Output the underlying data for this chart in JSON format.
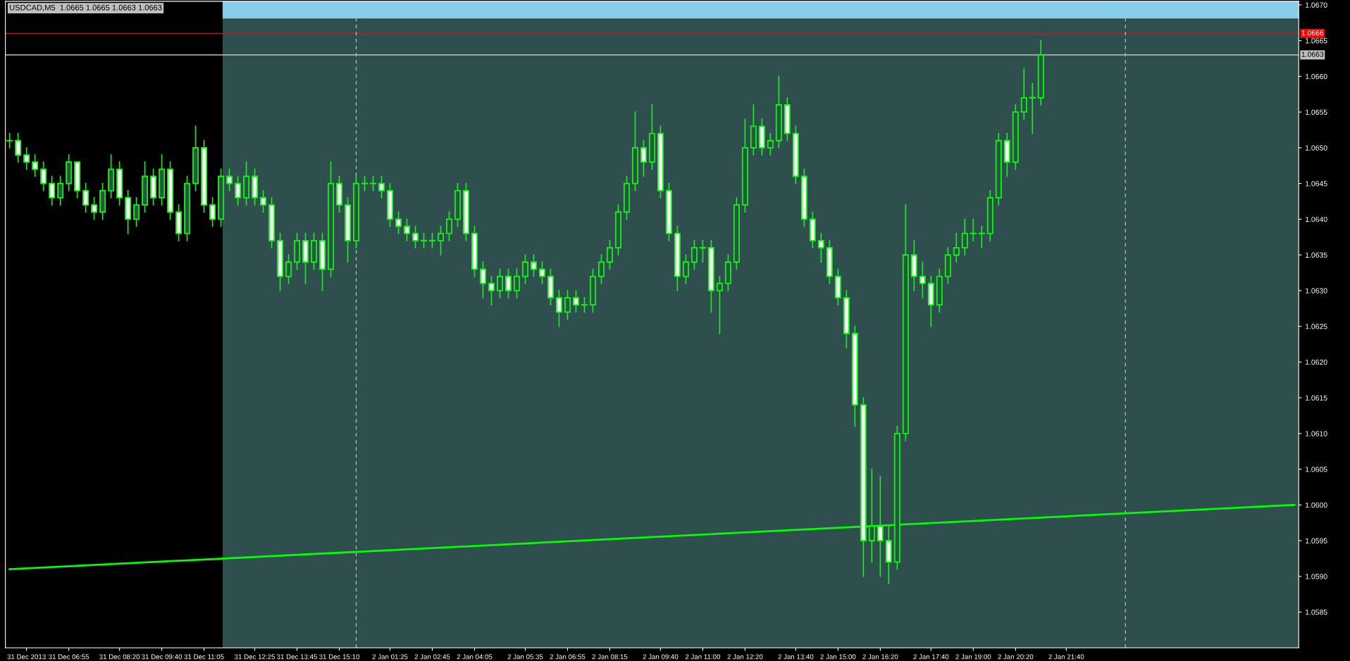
{
  "chart_data": {
    "type": "candlestick",
    "title": "USDCAD,M5  1.0665 1.0665 1.0663 1.0663",
    "color": "#00ff00",
    "categories": [
      null,
      null,
      "31 Dec 2013",
      null,
      null,
      null,
      null,
      "31 Dec 06:55",
      null,
      null,
      null,
      null,
      null,
      "31 Dec 08:20",
      null,
      null,
      null,
      null,
      "31 Dec 09:40",
      null,
      null,
      null,
      null,
      "31 Dec 11:05",
      null,
      null,
      null,
      null,
      null,
      "31 Dec 12:25",
      null,
      null,
      null,
      null,
      "31 Dec 13:45",
      null,
      null,
      null,
      null,
      "31 Dec 15:10",
      null,
      null,
      null,
      null,
      null,
      "2 Jan 01:25",
      null,
      null,
      null,
      null,
      "2 Jan 02:45",
      null,
      null,
      null,
      null,
      "2 Jan 04:05",
      null,
      null,
      null,
      null,
      null,
      "2 Jan 05:35",
      null,
      null,
      null,
      null,
      "2 Jan 06:55",
      null,
      null,
      null,
      null,
      "2 Jan 08:15",
      null,
      null,
      null,
      null,
      null,
      "2 Jan 09:40",
      null,
      null,
      null,
      null,
      "2 Jan 11:00",
      null,
      null,
      null,
      null,
      "2 Jan 12:20",
      null,
      null,
      null,
      null,
      null,
      "2 Jan 13:40",
      null,
      null,
      null,
      null,
      "2 Jan 15:00",
      null,
      null,
      null,
      null,
      "2 Jan 16:20",
      null,
      null,
      null,
      null,
      null,
      "2 Jan 17:40",
      null,
      null,
      null,
      null,
      "2 Jan 19:00",
      null,
      null,
      null,
      null,
      "2 Jan 20:20",
      null,
      null,
      null,
      null,
      null,
      "2 Jan 21:40",
      null,
      null,
      null,
      null,
      null,
      null,
      null,
      null,
      null,
      null,
      null,
      null,
      null,
      null,
      null,
      null,
      null,
      null,
      null,
      null,
      null,
      null,
      null,
      null,
      null,
      null,
      null
    ],
    "ohlc": [
      [
        1.0651,
        1.0652,
        1.065,
        1.0651
      ],
      [
        1.0651,
        1.0652,
        1.0648,
        1.0649
      ],
      [
        1.0649,
        1.065,
        1.0647,
        1.0648
      ],
      [
        1.0648,
        1.0649,
        1.0646,
        1.0647
      ],
      [
        1.0647,
        1.0648,
        1.0644,
        1.0645
      ],
      [
        1.0645,
        1.0646,
        1.0642,
        1.0643
      ],
      [
        1.0643,
        1.0646,
        1.0642,
        1.0645
      ],
      [
        1.0645,
        1.0649,
        1.0644,
        1.0648
      ],
      [
        1.0648,
        1.0648,
        1.0643,
        1.0644
      ],
      [
        1.0644,
        1.0645,
        1.0641,
        1.0642
      ],
      [
        1.0642,
        1.0643,
        1.064,
        1.0641
      ],
      [
        1.0641,
        1.0645,
        1.064,
        1.0644
      ],
      [
        1.0644,
        1.0649,
        1.0643,
        1.0647
      ],
      [
        1.0647,
        1.0648,
        1.0642,
        1.0643
      ],
      [
        1.0643,
        1.0644,
        1.0638,
        1.064
      ],
      [
        1.064,
        1.0643,
        1.0639,
        1.0642
      ],
      [
        1.0642,
        1.0648,
        1.0641,
        1.0646
      ],
      [
        1.0646,
        1.0647,
        1.0642,
        1.0643
      ],
      [
        1.0643,
        1.0649,
        1.0642,
        1.0647
      ],
      [
        1.0647,
        1.0648,
        1.064,
        1.0641
      ],
      [
        1.0641,
        1.0642,
        1.0637,
        1.0638
      ],
      [
        1.0638,
        1.0646,
        1.0637,
        1.0645
      ],
      [
        1.0645,
        1.0653,
        1.0644,
        1.065
      ],
      [
        1.065,
        1.0651,
        1.0641,
        1.0642
      ],
      [
        1.0642,
        1.0643,
        1.0639,
        1.064
      ],
      [
        1.064,
        1.0647,
        1.0639,
        1.0646
      ],
      [
        1.0646,
        1.0647,
        1.0644,
        1.0645
      ],
      [
        1.0645,
        1.0646,
        1.0642,
        1.0643
      ],
      [
        1.0643,
        1.0648,
        1.0642,
        1.0646
      ],
      [
        1.0646,
        1.0647,
        1.0642,
        1.0643
      ],
      [
        1.0643,
        1.0644,
        1.0641,
        1.0642
      ],
      [
        1.0642,
        1.0643,
        1.0636,
        1.0637
      ],
      [
        1.0637,
        1.0638,
        1.063,
        1.0632
      ],
      [
        1.0632,
        1.0635,
        1.0631,
        1.0634
      ],
      [
        1.0634,
        1.0638,
        1.0633,
        1.0637
      ],
      [
        1.0637,
        1.0638,
        1.0631,
        1.0634
      ],
      [
        1.0634,
        1.0638,
        1.0633,
        1.0637
      ],
      [
        1.0637,
        1.0638,
        1.063,
        1.0633
      ],
      [
        1.0633,
        1.0648,
        1.0632,
        1.0645
      ],
      [
        1.0645,
        1.0646,
        1.0641,
        1.0642
      ],
      [
        1.0642,
        1.0643,
        1.0634,
        1.0637
      ],
      [
        1.0637,
        1.0646,
        1.0636,
        1.0645
      ],
      [
        1.0645,
        1.0646,
        1.0644,
        1.0645
      ],
      [
        1.0645,
        1.0646,
        1.0644,
        1.0645
      ],
      [
        1.0645,
        1.0646,
        1.0643,
        1.0644
      ],
      [
        1.0644,
        1.0645,
        1.0639,
        1.064
      ],
      [
        1.064,
        1.0641,
        1.0638,
        1.0639
      ],
      [
        1.0639,
        1.064,
        1.0637,
        1.0638
      ],
      [
        1.0638,
        1.0639,
        1.0636,
        1.0637
      ],
      [
        1.0637,
        1.0638,
        1.0636,
        1.0637
      ],
      [
        1.0637,
        1.0638,
        1.0636,
        1.0637
      ],
      [
        1.0637,
        1.0639,
        1.0635,
        1.0638
      ],
      [
        1.0638,
        1.0641,
        1.0637,
        1.064
      ],
      [
        1.064,
        1.0645,
        1.0639,
        1.0644
      ],
      [
        1.0644,
        1.0645,
        1.0637,
        1.0638
      ],
      [
        1.0638,
        1.0639,
        1.0632,
        1.0633
      ],
      [
        1.0633,
        1.0634,
        1.0629,
        1.0631
      ],
      [
        1.0631,
        1.0632,
        1.0628,
        1.063
      ],
      [
        1.063,
        1.0633,
        1.0629,
        1.0632
      ],
      [
        1.0632,
        1.0633,
        1.0629,
        1.063
      ],
      [
        1.063,
        1.0633,
        1.0629,
        1.0632
      ],
      [
        1.0632,
        1.0635,
        1.0631,
        1.0634
      ],
      [
        1.0634,
        1.0635,
        1.0632,
        1.0633
      ],
      [
        1.0633,
        1.0634,
        1.0631,
        1.0632
      ],
      [
        1.0632,
        1.0633,
        1.0628,
        1.0629
      ],
      [
        1.0629,
        1.063,
        1.0625,
        1.0627
      ],
      [
        1.0627,
        1.063,
        1.0626,
        1.0629
      ],
      [
        1.0629,
        1.063,
        1.0627,
        1.0628
      ],
      [
        1.0628,
        1.0629,
        1.0627,
        1.0628
      ],
      [
        1.0628,
        1.0633,
        1.0627,
        1.0632
      ],
      [
        1.0632,
        1.0635,
        1.0631,
        1.0634
      ],
      [
        1.0634,
        1.0637,
        1.0633,
        1.0636
      ],
      [
        1.0636,
        1.0642,
        1.0635,
        1.0641
      ],
      [
        1.0641,
        1.0646,
        1.064,
        1.0645
      ],
      [
        1.0645,
        1.0655,
        1.0644,
        1.065
      ],
      [
        1.065,
        1.0651,
        1.0646,
        1.0648
      ],
      [
        1.0648,
        1.0656,
        1.0647,
        1.0652
      ],
      [
        1.0652,
        1.0653,
        1.0643,
        1.0644
      ],
      [
        1.0644,
        1.0645,
        1.0637,
        1.0638
      ],
      [
        1.0638,
        1.0639,
        1.063,
        1.0632
      ],
      [
        1.0632,
        1.0635,
        1.0631,
        1.0634
      ],
      [
        1.0634,
        1.0637,
        1.0633,
        1.0636
      ],
      [
        1.0636,
        1.0637,
        1.0634,
        1.0636
      ],
      [
        1.0636,
        1.0637,
        1.0627,
        1.063
      ],
      [
        1.063,
        1.0632,
        1.0624,
        1.0631
      ],
      [
        1.0631,
        1.0635,
        1.063,
        1.0634
      ],
      [
        1.0634,
        1.0643,
        1.0633,
        1.0642
      ],
      [
        1.0642,
        1.0654,
        1.0641,
        1.065
      ],
      [
        1.065,
        1.0656,
        1.0649,
        1.0653
      ],
      [
        1.0653,
        1.0654,
        1.0649,
        1.065
      ],
      [
        1.065,
        1.0652,
        1.0649,
        1.0651
      ],
      [
        1.0651,
        1.066,
        1.065,
        1.0656
      ],
      [
        1.0656,
        1.0657,
        1.0651,
        1.0652
      ],
      [
        1.0652,
        1.0653,
        1.0645,
        1.0646
      ],
      [
        1.0646,
        1.0647,
        1.0639,
        1.064
      ],
      [
        1.064,
        1.0641,
        1.0636,
        1.0637
      ],
      [
        1.0637,
        1.0638,
        1.0634,
        1.0636
      ],
      [
        1.0636,
        1.0637,
        1.0631,
        1.0632
      ],
      [
        1.0632,
        1.0633,
        1.0628,
        1.0629
      ],
      [
        1.0629,
        1.063,
        1.0622,
        1.0624
      ],
      [
        1.0624,
        1.0625,
        1.0611,
        1.0614
      ],
      [
        1.0614,
        1.0615,
        1.059,
        1.0595
      ],
      [
        1.0595,
        1.0605,
        1.0592,
        1.0597
      ],
      [
        1.0597,
        1.0604,
        1.059,
        1.0595
      ],
      [
        1.0595,
        1.0597,
        1.0589,
        1.0592
      ],
      [
        1.0592,
        1.0611,
        1.0591,
        1.061
      ],
      [
        1.061,
        1.0642,
        1.0609,
        1.0635
      ],
      [
        1.0635,
        1.0637,
        1.063,
        1.0632
      ],
      [
        1.0632,
        1.0634,
        1.0629,
        1.0631
      ],
      [
        1.0631,
        1.0632,
        1.0625,
        1.0628
      ],
      [
        1.0628,
        1.0633,
        1.0627,
        1.0632
      ],
      [
        1.0632,
        1.0636,
        1.0631,
        1.0635
      ],
      [
        1.0635,
        1.0638,
        1.0634,
        1.0636
      ],
      [
        1.0636,
        1.064,
        1.0635,
        1.0638
      ],
      [
        1.0638,
        1.064,
        1.0637,
        1.0638
      ],
      [
        1.0638,
        1.0639,
        1.0636,
        1.0638
      ],
      [
        1.0638,
        1.0644,
        1.0637,
        1.0643
      ],
      [
        1.0643,
        1.0652,
        1.0642,
        1.0651
      ],
      [
        1.0651,
        1.0652,
        1.0646,
        1.0648
      ],
      [
        1.0648,
        1.0656,
        1.0647,
        1.0655
      ],
      [
        1.0655,
        1.0661,
        1.0654,
        1.0657
      ],
      [
        1.0657,
        1.0659,
        1.0652,
        1.0657
      ],
      [
        1.0657,
        1.0665,
        1.0656,
        1.0663
      ],
      null,
      null,
      null,
      null,
      null,
      null,
      null,
      null,
      null,
      null,
      null,
      null,
      null,
      null,
      null,
      null,
      null,
      null,
      null,
      null,
      null,
      null,
      null,
      null,
      null,
      null,
      null,
      null,
      null,
      null
    ],
    "series": [
      {
        "type": "line",
        "color": "#00ff00",
        "values": [
          1.0591,
          null,
          null,
          null,
          null,
          null,
          null,
          null,
          null,
          null,
          null,
          null,
          null,
          null,
          null,
          null,
          null,
          null,
          null,
          null,
          null,
          null,
          null,
          null,
          null,
          null,
          null,
          null,
          null,
          null,
          null,
          null,
          null,
          null,
          null,
          null,
          null,
          null,
          null,
          null,
          null,
          null,
          null,
          null,
          null,
          null,
          null,
          null,
          null,
          null,
          null,
          null,
          null,
          null,
          null,
          null,
          null,
          null,
          null,
          null,
          null,
          null,
          null,
          null,
          null,
          null,
          null,
          null,
          null,
          null,
          null,
          null,
          null,
          null,
          null,
          null,
          null,
          null,
          null,
          null,
          null,
          null,
          null,
          null,
          null,
          null,
          null,
          null,
          null,
          null,
          null,
          null,
          null,
          null,
          null,
          null,
          null,
          null,
          null,
          null,
          null,
          null,
          null,
          null,
          null,
          null,
          null,
          null,
          null,
          null,
          null,
          null,
          null,
          null,
          null,
          null,
          null,
          null,
          null,
          null,
          null,
          null,
          null,
          null,
          null,
          null,
          null,
          null,
          null,
          null,
          null,
          null,
          null,
          null,
          null,
          null,
          null,
          null,
          null,
          null,
          null,
          null,
          null,
          null,
          null,
          null,
          null,
          null,
          null,
          null,
          null,
          null,
          1.06
        ]
      }
    ],
    "ylim": [
      1.058,
      1.06705
    ],
    "yticks": [
      1.0585,
      {
        "value": 1.059,
        "label": "1.0590"
      },
      1.0595,
      {
        "value": 1.06,
        "label": "1.0600"
      },
      1.0605,
      {
        "value": 1.061,
        "label": "1.0610"
      },
      1.0615,
      {
        "value": 1.062,
        "label": "1.0620"
      },
      1.0625,
      {
        "value": 1.063,
        "label": "1.0630"
      },
      1.0635,
      {
        "value": 1.064,
        "label": "1.0640"
      },
      1.0645,
      {
        "value": 1.065,
        "label": "1.0650"
      },
      1.0655,
      {
        "value": 1.066,
        "label": "1.0660"
      },
      1.0665,
      {
        "value": 1.067,
        "label": "1.0670"
      }
    ],
    "ref_lines": [
      {
        "axis": "y",
        "value": 1.0666,
        "label": "1.0666",
        "color": "#ff0000"
      },
      {
        "axis": "y",
        "value": 1.0663,
        "label": "1.0663",
        "color": "#c0c0c0"
      }
    ],
    "bands": [
      {
        "axis": "y",
        "from": 1.06681,
        "to": 1.06705,
        "color": "#87ceeb"
      }
    ],
    "grid": false
  }
}
